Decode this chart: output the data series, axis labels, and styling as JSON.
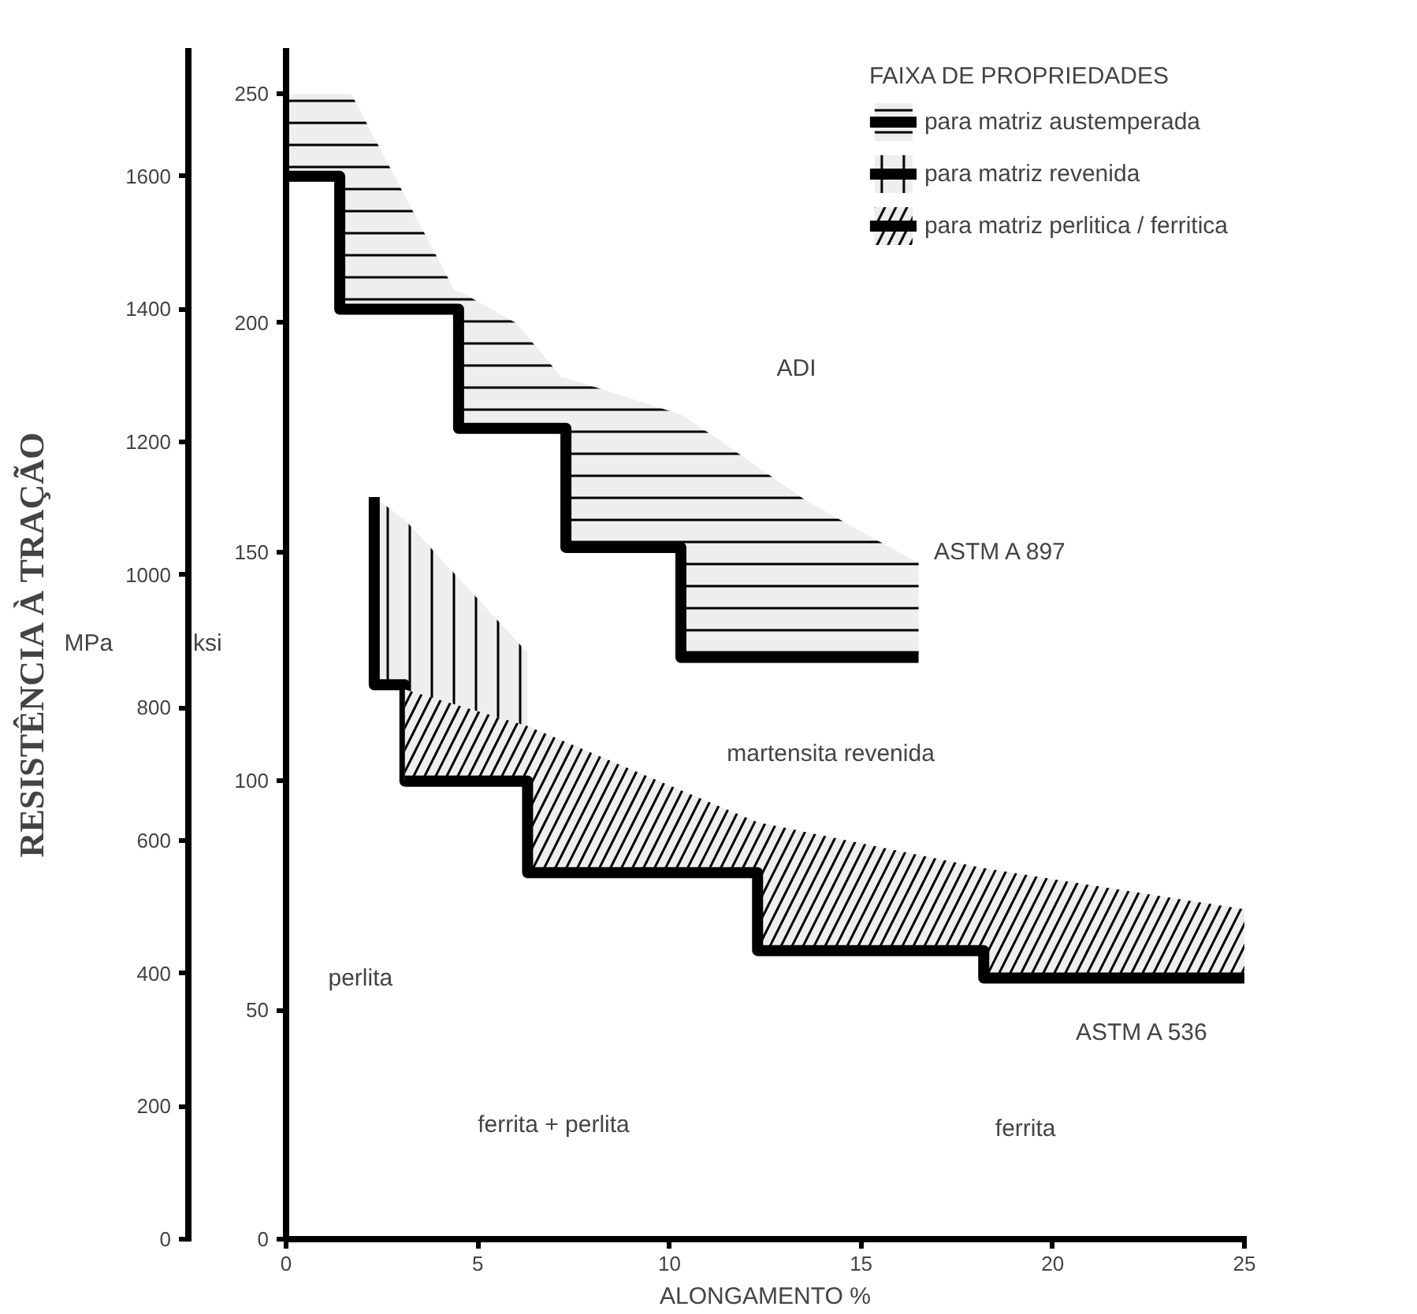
{
  "chart_data": {
    "type": "line",
    "title": "RESISTÊNCIA À TRAÇÃO",
    "xlabel": "ALONGAMENTO %",
    "ylabel": "ksi",
    "y2label": "MPa",
    "legend_title": "FAIXA DE PROPRIEDADES",
    "xlim": [
      0,
      25
    ],
    "xticks": [
      0,
      5,
      10,
      15,
      20,
      25
    ],
    "ylim": [
      0,
      260
    ],
    "yticks": [
      0,
      50,
      100,
      150,
      200,
      250
    ],
    "y2lim": [
      0,
      1793
    ],
    "y2ticks": [
      0,
      200,
      400,
      600,
      800,
      1000,
      1200,
      1400,
      1600
    ],
    "grid": false,
    "legend": "top right",
    "series": [
      {
        "name": "para matriz austemperada",
        "color": "#000000",
        "x": [
          0,
          1.4,
          1.4,
          1.7,
          4.4,
          4.5,
          4.5,
          6.0,
          7.2,
          7.3,
          7.3,
          10.3,
          10.3,
          11.2,
          13.6,
          16.4,
          16.5
        ],
        "values": [
          232,
          232,
          203,
          203,
          203,
          203,
          177,
          177,
          177,
          177,
          151,
          151,
          127,
          127,
          127,
          127,
          127
        ],
        "lower": [
          232,
          232,
          203,
          203,
          203,
          203,
          177,
          177,
          177,
          177,
          151,
          151,
          127,
          127,
          127,
          127,
          127
        ],
        "upper": [
          250,
          250,
          250,
          250,
          207,
          207,
          207,
          200,
          188,
          188,
          188,
          180,
          180,
          175,
          161,
          148,
          148
        ]
      },
      {
        "name": "para matriz revenida",
        "color": "#000000",
        "x": [
          2.3,
          2.3,
          3.1,
          3.1,
          6.3
        ],
        "values": [
          162,
          121,
          121,
          100,
          100
        ],
        "lower": [
          162,
          121,
          121,
          100,
          100
        ],
        "upper": [
          162,
          162,
          157,
          157,
          128
        ]
      },
      {
        "name": "para matriz perlitica / ferritica",
        "color": "#000000",
        "x": [
          3.1,
          6.3,
          6.3,
          12.3,
          12.3,
          18.2,
          18.2,
          25
        ],
        "values": [
          100,
          100,
          80,
          80,
          63,
          63,
          57,
          57
        ],
        "lower": [
          100,
          100,
          80,
          80,
          63,
          63,
          57,
          57
        ],
        "upper": [
          120,
          112,
          112,
          91,
          91,
          81,
          81,
          72
        ]
      }
    ],
    "annotations": [
      "ADI",
      "ASTM A 897",
      "martensita revenida",
      "perlita",
      "ferrita + perlita",
      "ferrita",
      "ASTM A 536"
    ]
  }
}
